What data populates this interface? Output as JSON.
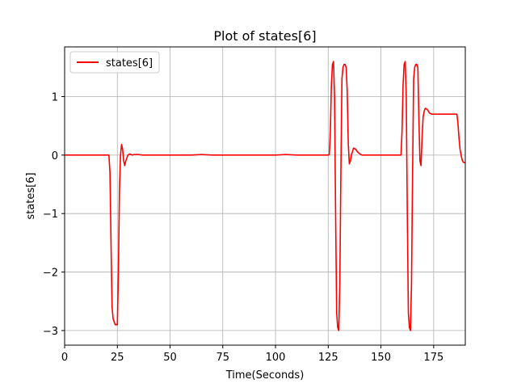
{
  "chart_data": {
    "type": "line",
    "title": "Plot of states[6]",
    "xlabel": "Time(Seconds)",
    "ylabel": "states[6]",
    "xlim": [
      0,
      190
    ],
    "ylim": [
      -3.25,
      1.85
    ],
    "xticks": [
      0,
      25,
      50,
      75,
      100,
      125,
      150,
      175
    ],
    "yticks": [
      -3,
      -2,
      -1,
      0,
      1
    ],
    "ytick_labels": [
      "−3",
      "−2",
      "−1",
      "0",
      "1"
    ],
    "grid": true,
    "legend_position": "top-left",
    "series": [
      {
        "name": "states[6]",
        "color": "#ff0000",
        "x": [
          0,
          5,
          10,
          15,
          20,
          21,
          21.5,
          22,
          22.5,
          23,
          24,
          25,
          25.5,
          26,
          26.5,
          27,
          27.5,
          28,
          28.5,
          29,
          30,
          31,
          32,
          33,
          35,
          37,
          40,
          45,
          50,
          55,
          60,
          65,
          70,
          75,
          80,
          85,
          90,
          95,
          100,
          105,
          110,
          115,
          120,
          125,
          125.5,
          126,
          126.5,
          127,
          127.5,
          128,
          128.5,
          129,
          129.5,
          130,
          130.5,
          131,
          131.5,
          132,
          132.5,
          133,
          133.5,
          134,
          134.5,
          135,
          135.5,
          136,
          137,
          138,
          139,
          140,
          141,
          143,
          145,
          150,
          155,
          158,
          159,
          159.5,
          160,
          160.5,
          161,
          161.5,
          162,
          162.5,
          163,
          163.5,
          164,
          164.5,
          165,
          165.5,
          166,
          166.5,
          167,
          167.5,
          168,
          168.5,
          169,
          169.5,
          170,
          170.5,
          171,
          172,
          173,
          174,
          175,
          176,
          178,
          180,
          182,
          184,
          186,
          186.5,
          187,
          187.5,
          188,
          188.5,
          189,
          189.5,
          190
        ],
        "y": [
          0,
          0,
          0,
          0,
          0,
          0,
          -0.3,
          -1.5,
          -2.6,
          -2.8,
          -2.9,
          -2.9,
          -2.0,
          -0.6,
          0.0,
          0.18,
          0.1,
          -0.1,
          -0.18,
          -0.1,
          0.0,
          0.02,
          0.0,
          0.01,
          0.01,
          0.0,
          0.0,
          0.0,
          0.0,
          0.0,
          0.0,
          0.01,
          0.0,
          0.0,
          0.0,
          0.0,
          0.0,
          0.0,
          0.0,
          0.01,
          0.0,
          0.0,
          0.0,
          0.0,
          0.01,
          0.4,
          1.2,
          1.55,
          1.6,
          1.0,
          -1.0,
          -2.7,
          -2.95,
          -3.0,
          -2.2,
          -0.3,
          1.3,
          1.5,
          1.55,
          1.55,
          1.5,
          1.1,
          0.2,
          -0.15,
          -0.1,
          0.0,
          0.12,
          0.1,
          0.05,
          0.02,
          0.0,
          0.0,
          0.0,
          0.0,
          0.0,
          0.0,
          0.0,
          0.0,
          0.4,
          1.2,
          1.55,
          1.6,
          1.0,
          -1.0,
          -2.7,
          -2.95,
          -3.0,
          -2.2,
          -0.3,
          1.3,
          1.5,
          1.55,
          1.55,
          1.5,
          0.6,
          -0.1,
          -0.18,
          0.3,
          0.65,
          0.75,
          0.8,
          0.78,
          0.72,
          0.7,
          0.7,
          0.7,
          0.7,
          0.7,
          0.7,
          0.7,
          0.7,
          0.55,
          0.3,
          0.1,
          0.0,
          -0.08,
          -0.12,
          -0.13,
          -0.13
        ]
      }
    ]
  }
}
